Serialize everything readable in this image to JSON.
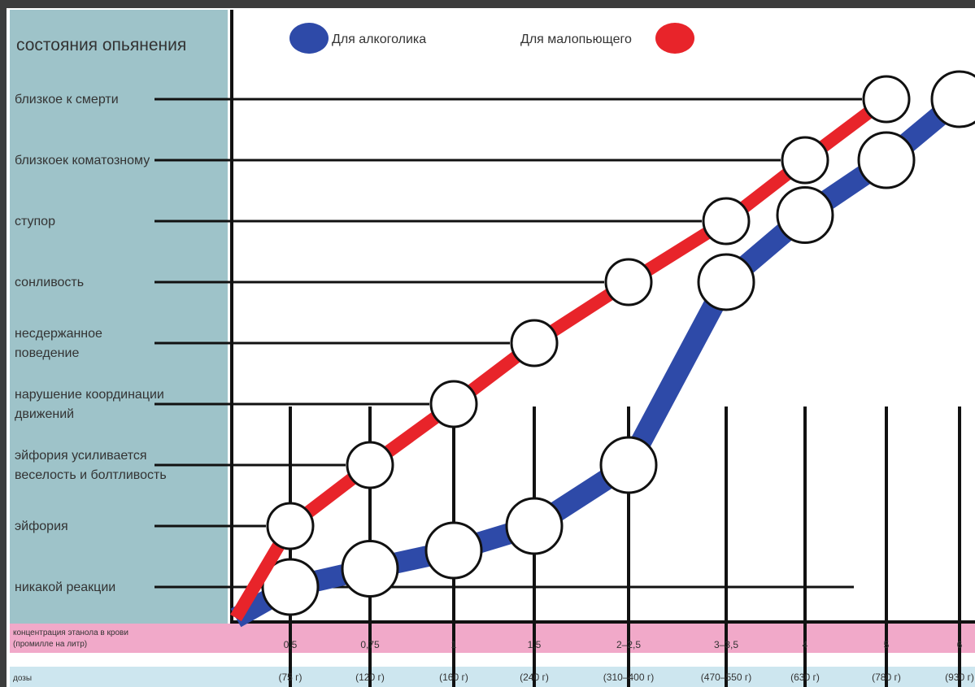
{
  "chart_data": {
    "type": "line",
    "y_title": "состояния опьянения",
    "levels": [
      [
        "никакой реакции"
      ],
      [
        "эйфория"
      ],
      [
        "эйфория усиливается",
        "веселость и болтливость"
      ],
      [
        "нарушение координации",
        "движений"
      ],
      [
        "несдержанное",
        "поведение"
      ],
      [
        "сонливость"
      ],
      [
        "ступор"
      ],
      [
        "близкоек коматозному"
      ],
      [
        "близкое к смерти"
      ]
    ],
    "ylim": [
      1,
      9
    ],
    "x_title": [
      "концентрация этанола в крови",
      "(промилле на литр)"
    ],
    "categories": [
      "0,5",
      "0,75",
      "1",
      "1,5",
      "2–2,5",
      "3–3,5",
      "4",
      "5",
      "6"
    ],
    "dose_title": "дозы",
    "doses": [
      "(75 г)",
      "(120 г)",
      "(160 г)",
      "(240 г)",
      "(310–400 г)",
      "(470–550 г)",
      "(630 г)",
      "(780 г)",
      "(930 г)"
    ],
    "series": [
      {
        "name": "Для алкоголика",
        "color": "#2e4aa8",
        "values": [
          1,
          1.3,
          1.6,
          2,
          3,
          6,
          7.1,
          8,
          9
        ]
      },
      {
        "name": "Для малопьющего",
        "color": "#e8242a",
        "values": [
          2,
          3,
          4,
          5,
          6,
          7,
          8,
          9,
          null
        ]
      }
    ]
  }
}
